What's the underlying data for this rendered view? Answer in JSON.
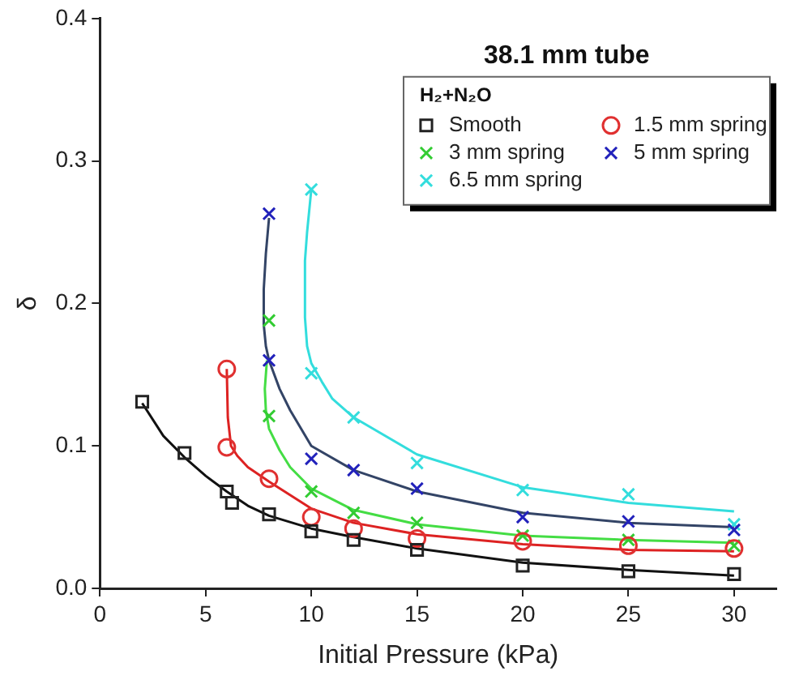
{
  "chart_data": {
    "type": "scatter",
    "title": "38.1 mm tube",
    "xlabel": "Initial Pressure (kPa)",
    "ylabel": "δ",
    "legend_title": "H₂+N₂O",
    "legend": "top right",
    "grid": false,
    "xlim": [
      0,
      32
    ],
    "xticks": [
      0,
      5,
      10,
      15,
      20,
      25,
      30
    ],
    "ylim": [
      0,
      0.4
    ],
    "yticks": [
      {
        "value": 0,
        "label": "0.0"
      },
      {
        "value": 0.1,
        "label": "0.1"
      },
      {
        "value": 0.2,
        "label": "0.2"
      },
      {
        "value": 0.3,
        "label": "0.3"
      },
      {
        "value": 0.4,
        "label": "0.4"
      }
    ],
    "series": [
      {
        "name": "Smooth",
        "type": "scatter",
        "marker": "square",
        "color": "#222222",
        "x": [
          2,
          4,
          6,
          6.25,
          8,
          10,
          12,
          15,
          20,
          25,
          30
        ],
        "values": [
          0.131,
          0.095,
          0.068,
          0.06,
          0.052,
          0.04,
          0.034,
          0.027,
          0.016,
          0.012,
          0.01
        ]
      },
      {
        "name": "1.5 mm spring",
        "type": "scatter",
        "marker": "circle",
        "color": "#e03030",
        "x": [
          6,
          6,
          8,
          10,
          12,
          15,
          20,
          25,
          30
        ],
        "values": [
          0.154,
          0.099,
          0.077,
          0.05,
          0.042,
          0.035,
          0.033,
          0.03,
          0.028
        ]
      },
      {
        "name": "3 mm spring",
        "type": "scatter",
        "marker": "cross",
        "color": "#33cc33",
        "x": [
          8,
          8,
          10,
          12,
          15,
          20,
          25,
          30
        ],
        "values": [
          0.188,
          0.121,
          0.068,
          0.053,
          0.046,
          0.037,
          0.034,
          0.03
        ]
      },
      {
        "name": "5 mm spring",
        "type": "scatter",
        "marker": "cross",
        "color": "#2222bb",
        "x": [
          8,
          8,
          10,
          12,
          15,
          20,
          25,
          30
        ],
        "values": [
          0.263,
          0.16,
          0.091,
          0.083,
          0.07,
          0.05,
          0.047,
          0.041
        ]
      },
      {
        "name": "6.5 mm spring",
        "type": "scatter",
        "marker": "cross",
        "color": "#33dddd",
        "x": [
          10,
          10,
          12,
          15,
          20,
          25,
          30
        ],
        "values": [
          0.28,
          0.151,
          0.12,
          0.088,
          0.069,
          0.066,
          0.045
        ]
      },
      {
        "type": "line",
        "marker": "none",
        "color": "#111111",
        "x": [
          2,
          3,
          4,
          5,
          6,
          7,
          8,
          10,
          12,
          15,
          20,
          25,
          30
        ],
        "values": [
          0.13,
          0.107,
          0.092,
          0.079,
          0.068,
          0.058,
          0.051,
          0.042,
          0.036,
          0.028,
          0.018,
          0.013,
          0.009
        ]
      },
      {
        "type": "line",
        "marker": "none",
        "color": "#dd2222",
        "x": [
          6,
          6.05,
          6.2,
          6.5,
          7,
          8,
          10,
          12,
          15,
          20,
          25,
          30
        ],
        "values": [
          0.154,
          0.12,
          0.1,
          0.093,
          0.085,
          0.075,
          0.056,
          0.046,
          0.038,
          0.031,
          0.027,
          0.026
        ]
      },
      {
        "type": "line",
        "marker": "none",
        "color": "#44dd44",
        "x": [
          7.9,
          7.8,
          7.85,
          8,
          8.5,
          9,
          10,
          12,
          15,
          20,
          25,
          30
        ],
        "values": [
          0.16,
          0.14,
          0.125,
          0.112,
          0.097,
          0.085,
          0.07,
          0.055,
          0.045,
          0.037,
          0.034,
          0.032
        ]
      },
      {
        "type": "line",
        "marker": "none",
        "color": "#334466",
        "x": [
          8,
          7.85,
          7.75,
          7.75,
          7.85,
          8,
          8.5,
          9,
          10,
          12,
          15,
          20,
          25,
          30
        ],
        "values": [
          0.26,
          0.235,
          0.21,
          0.185,
          0.17,
          0.16,
          0.14,
          0.125,
          0.1,
          0.083,
          0.068,
          0.053,
          0.046,
          0.043
        ]
      },
      {
        "type": "line",
        "marker": "none",
        "color": "#33dddd",
        "x": [
          10,
          9.8,
          9.7,
          9.7,
          9.8,
          10,
          10.5,
          11,
          12,
          15,
          20,
          25,
          30
        ],
        "values": [
          0.28,
          0.25,
          0.23,
          0.19,
          0.17,
          0.158,
          0.145,
          0.133,
          0.12,
          0.094,
          0.071,
          0.06,
          0.054
        ]
      }
    ]
  }
}
